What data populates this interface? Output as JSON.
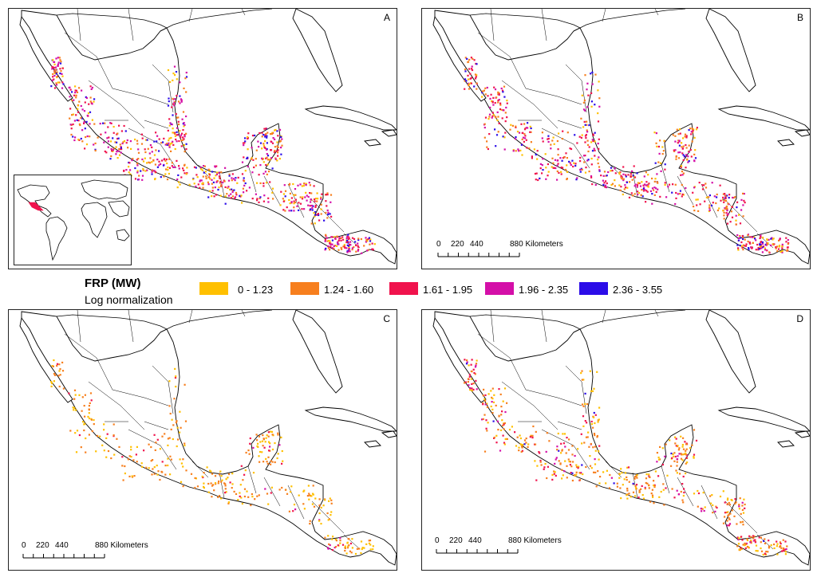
{
  "panels": [
    {
      "id": "A",
      "label": "A",
      "has_scale": false,
      "has_inset": true,
      "weights": [
        0.16,
        0.22,
        0.26,
        0.22,
        0.14
      ],
      "density": 1.0
    },
    {
      "id": "B",
      "label": "B",
      "has_scale": true,
      "has_inset": false,
      "weights": [
        0.12,
        0.24,
        0.3,
        0.22,
        0.12
      ],
      "density": 0.85
    },
    {
      "id": "C",
      "label": "C",
      "has_scale": true,
      "has_inset": false,
      "weights": [
        0.45,
        0.45,
        0.08,
        0.02,
        0.0
      ],
      "density": 0.45
    },
    {
      "id": "D",
      "label": "D",
      "has_scale": true,
      "has_inset": false,
      "weights": [
        0.3,
        0.4,
        0.2,
        0.08,
        0.02
      ],
      "density": 0.65
    }
  ],
  "scale_bar": {
    "ticks": [
      "0",
      "220",
      "440",
      "880 Kilometers"
    ]
  },
  "legend": {
    "title": "FRP (MW)",
    "subtitle": "Log normalization",
    "classes": [
      {
        "label": "0 - 1.23",
        "color": "#FFC000"
      },
      {
        "label": "1.24 - 1.60",
        "color": "#F77F1E"
      },
      {
        "label": "1.61 - 1.95",
        "color": "#F0134D"
      },
      {
        "label": "1.96 - 2.35",
        "color": "#D40FA8"
      },
      {
        "label": "2.36 - 3.55",
        "color": "#2B0CE8"
      }
    ]
  }
}
